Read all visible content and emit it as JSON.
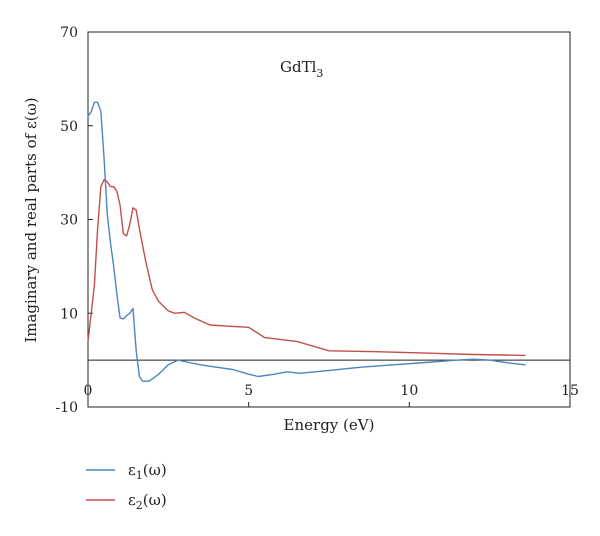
{
  "chart_data": {
    "type": "line",
    "annotation": {
      "base": "GdTl",
      "sub": "3"
    },
    "xlabel": "Energy (eV)",
    "ylabel": "Imaginary and real parts of ε(ω)",
    "xlim": [
      0,
      15
    ],
    "ylim": [
      -10,
      70
    ],
    "xticks": [
      0,
      5,
      10,
      15
    ],
    "yticks": [
      -10,
      10,
      30,
      50,
      70
    ],
    "grid": false,
    "legend_position": "bottom-left",
    "series": [
      {
        "name": "ε1(ω)",
        "legend": {
          "base": "ε",
          "sub": "1",
          "suffix": "(ω)"
        },
        "color": "#4a86c0",
        "x": [
          0,
          0.1,
          0.2,
          0.3,
          0.4,
          0.5,
          0.6,
          0.7,
          0.8,
          0.9,
          1.0,
          1.1,
          1.2,
          1.3,
          1.4,
          1.5,
          1.6,
          1.7,
          1.9,
          2.2,
          2.5,
          2.8,
          3.0,
          3.5,
          4.0,
          4.5,
          5.0,
          5.3,
          5.8,
          6.2,
          6.6,
          7.5,
          8.5,
          9.5,
          10.5,
          11.5,
          12.0,
          12.5,
          13.0,
          13.6
        ],
        "y": [
          52,
          53,
          55,
          55,
          53,
          43,
          31,
          25,
          20,
          14,
          9,
          8.8,
          9.5,
          10,
          11,
          2,
          -3.5,
          -4.5,
          -4.5,
          -3,
          -1,
          0,
          -0.3,
          -1,
          -1.5,
          -2,
          -3,
          -3.5,
          -3,
          -2.5,
          -2.8,
          -2.2,
          -1.5,
          -1,
          -0.5,
          0,
          0.2,
          0,
          -0.5,
          -1
        ]
      },
      {
        "name": "ε2(ω)",
        "legend": {
          "base": "ε",
          "sub": "2",
          "suffix": "(ω)"
        },
        "color": "#c0504d",
        "x": [
          0,
          0.1,
          0.2,
          0.3,
          0.4,
          0.5,
          0.6,
          0.7,
          0.8,
          0.9,
          1.0,
          1.1,
          1.2,
          1.3,
          1.4,
          1.5,
          1.6,
          1.8,
          2.0,
          2.2,
          2.5,
          2.7,
          3.0,
          3.3,
          3.8,
          4.5,
          5.0,
          5.5,
          6.5,
          7.5,
          9.0,
          10.5,
          12.0,
          13.6
        ],
        "y": [
          4,
          10,
          16,
          28,
          37,
          38.5,
          38,
          37,
          37,
          36,
          33,
          27,
          26.5,
          29,
          32.5,
          32,
          28,
          21,
          15,
          12.5,
          10.5,
          10,
          10.2,
          9,
          7.5,
          7.2,
          7,
          4.8,
          4,
          2,
          1.8,
          1.5,
          1.2,
          1
        ]
      }
    ]
  }
}
